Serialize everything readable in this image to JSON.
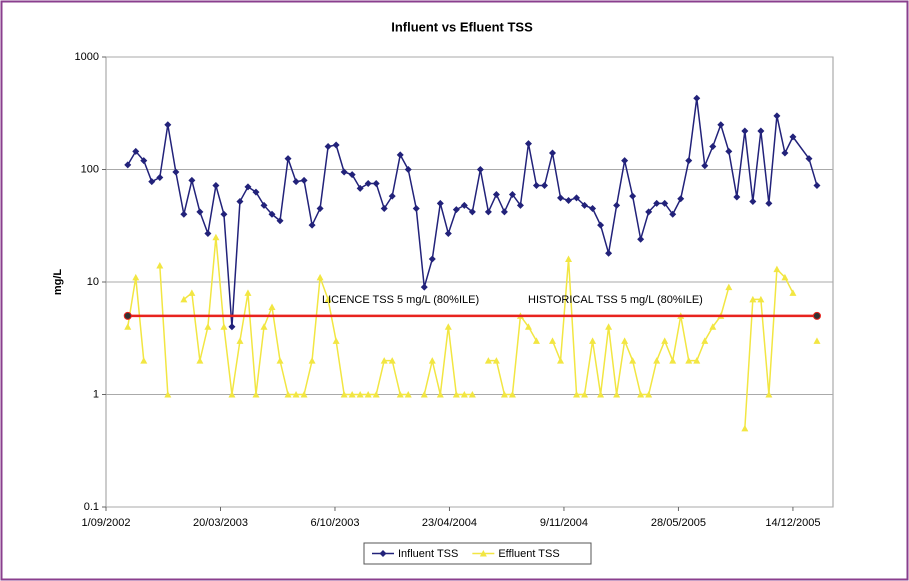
{
  "chart_data": {
    "type": "line",
    "title": "Influent vs Efluent TSS",
    "y_label": "mg/L",
    "log_y": true,
    "grid": true,
    "legend": "bottom",
    "ylim": [
      0.1,
      1000
    ],
    "yticks": [
      0.1,
      1,
      10,
      100,
      1000
    ],
    "xlim": [
      37500,
      38770
    ],
    "xticks": [
      {
        "value": 37500,
        "label": "1/09/2002"
      },
      {
        "value": 37700,
        "label": "20/03/2003"
      },
      {
        "value": 37900,
        "label": "6/10/2003"
      },
      {
        "value": 38100,
        "label": "23/04/2004"
      },
      {
        "value": 38300,
        "label": "9/11/2004"
      },
      {
        "value": 38500,
        "label": "28/05/2005"
      },
      {
        "value": 38700,
        "label": "14/12/2005"
      }
    ],
    "x": [
      37538,
      37552,
      37566,
      37580,
      37594,
      37608,
      37622,
      37636,
      37650,
      37664,
      37678,
      37692,
      37706,
      37720,
      37734,
      37748,
      37762,
      37776,
      37790,
      37804,
      37818,
      37832,
      37846,
      37860,
      37874,
      37888,
      37902,
      37916,
      37930,
      37944,
      37958,
      37972,
      37986,
      38000,
      38014,
      38028,
      38042,
      38056,
      38070,
      38084,
      38098,
      38112,
      38126,
      38140,
      38154,
      38168,
      38182,
      38196,
      38210,
      38224,
      38238,
      38252,
      38266,
      38280,
      38294,
      38308,
      38322,
      38336,
      38350,
      38364,
      38378,
      38392,
      38406,
      38420,
      38434,
      38448,
      38462,
      38476,
      38490,
      38504,
      38518,
      38532,
      38546,
      38560,
      38574,
      38588,
      38602,
      38616,
      38630,
      38644,
      38658,
      38672,
      38686,
      38700,
      38728,
      38742
    ],
    "series": [
      {
        "name": "Influent TSS",
        "color": "#22227a",
        "marker": "diamond",
        "values": [
          110,
          145,
          120,
          78,
          85,
          250,
          95,
          40,
          80,
          42,
          27,
          72,
          40,
          4,
          52,
          70,
          63,
          48,
          40,
          35,
          125,
          78,
          80,
          32,
          45,
          160,
          165,
          95,
          90,
          68,
          75,
          75,
          45,
          58,
          135,
          100,
          45,
          9,
          16,
          50,
          27,
          44,
          48,
          42,
          100,
          42,
          60,
          42,
          60,
          48,
          170,
          72,
          72,
          140,
          56,
          53,
          56,
          48,
          45,
          32,
          18,
          48,
          120,
          58,
          24,
          42,
          50,
          50,
          40,
          55,
          120,
          430,
          108,
          160,
          250,
          145,
          57,
          220,
          52,
          220,
          50,
          300,
          140,
          195,
          125,
          72
        ]
      },
      {
        "name": "Effluent TSS",
        "color": "#f2e642",
        "marker": "triangle",
        "values": [
          4,
          11,
          2,
          null,
          14,
          1,
          null,
          7,
          8,
          2,
          4,
          25,
          4,
          1,
          3,
          8,
          1,
          4,
          6,
          2,
          1,
          1,
          1,
          2,
          11,
          7,
          3,
          1,
          1,
          1,
          1,
          1,
          2,
          2,
          1,
          1,
          null,
          1,
          2,
          1,
          4,
          1,
          1,
          1,
          null,
          2,
          2,
          1,
          1,
          5,
          4,
          3,
          null,
          3,
          2,
          16,
          1,
          1,
          3,
          1,
          4,
          1,
          3,
          2,
          1,
          1,
          2,
          3,
          2,
          5,
          2,
          2,
          3,
          4,
          5,
          9,
          null,
          0.5,
          7,
          7,
          1,
          13,
          11,
          8,
          null,
          3
        ]
      }
    ],
    "reference_line": {
      "value": 5,
      "x": [
        37538,
        38742
      ],
      "color": "#e8231e"
    },
    "annotations": [
      "LICENCE TSS 5 mg/L (80%ILE)",
      "HISTORICAL TSS 5 mg/L (80%ILE)"
    ]
  }
}
